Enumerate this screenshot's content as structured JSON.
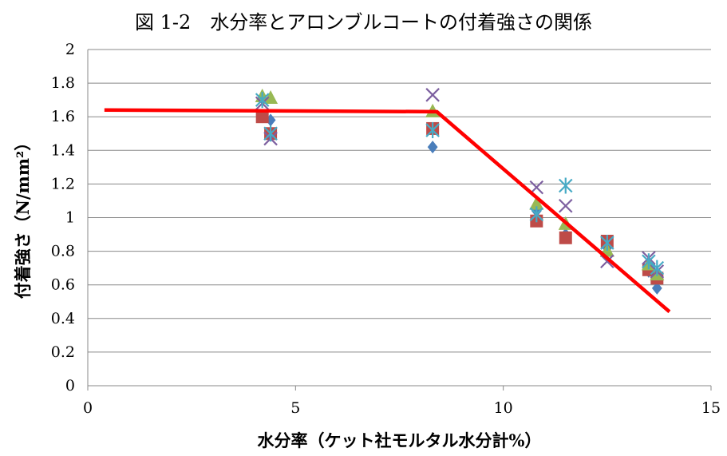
{
  "chart_data": {
    "type": "scatter",
    "title": "図 1-2　水分率とアロンブルコートの付着強さの関係",
    "xlabel": "水分率（ケット社モルタル水分計%）",
    "ylabel": "付着強さ（N/mm²）",
    "xlim": [
      0,
      15
    ],
    "ylim": [
      0,
      2
    ],
    "xticks": [
      "0",
      "5",
      "10",
      "15"
    ],
    "yticks": [
      "0",
      "0.2",
      "0.4",
      "0.6",
      "0.8",
      "1",
      "1.2",
      "1.4",
      "1.6",
      "1.8",
      "2"
    ],
    "grid": "horizontal",
    "legend": "none",
    "series": [
      {
        "marker": "diamond",
        "color": "#4A7EBB",
        "points": [
          [
            4.2,
            1.6
          ],
          [
            4.4,
            1.58
          ],
          [
            8.3,
            1.42
          ],
          [
            10.8,
            1.04
          ],
          [
            11.5,
            0.9
          ],
          [
            12.5,
            0.82
          ],
          [
            13.5,
            0.68
          ],
          [
            13.7,
            0.58
          ]
        ]
      },
      {
        "marker": "square",
        "color": "#BE4B48",
        "points": [
          [
            4.2,
            1.6
          ],
          [
            4.4,
            1.5
          ],
          [
            8.3,
            1.53
          ],
          [
            10.8,
            0.98
          ],
          [
            11.5,
            0.88
          ],
          [
            12.5,
            0.86
          ],
          [
            13.5,
            0.69
          ],
          [
            13.7,
            0.64
          ]
        ]
      },
      {
        "marker": "triangle",
        "color": "#98B954",
        "points": [
          [
            4.2,
            1.72
          ],
          [
            4.4,
            1.71
          ],
          [
            8.3,
            1.63
          ],
          [
            10.8,
            1.08
          ],
          [
            11.5,
            0.96
          ],
          [
            12.5,
            0.8
          ],
          [
            13.5,
            0.72
          ],
          [
            13.7,
            0.66
          ]
        ]
      },
      {
        "marker": "x",
        "color": "#7D60A0",
        "points": [
          [
            4.2,
            1.68
          ],
          [
            4.4,
            1.47
          ],
          [
            8.3,
            1.73
          ],
          [
            10.8,
            1.18
          ],
          [
            11.5,
            1.07
          ],
          [
            12.5,
            0.74
          ],
          [
            13.5,
            0.76
          ],
          [
            13.7,
            0.68
          ]
        ]
      },
      {
        "marker": "star",
        "color": "#46AAC5",
        "points": [
          [
            4.2,
            1.7
          ],
          [
            4.4,
            1.5
          ],
          [
            8.3,
            1.52
          ],
          [
            10.8,
            1.02
          ],
          [
            11.5,
            1.19
          ],
          [
            12.5,
            0.85
          ],
          [
            13.5,
            0.74
          ],
          [
            13.7,
            0.7
          ]
        ]
      }
    ],
    "trend_line": {
      "color": "#FF0000",
      "points": [
        [
          0.4,
          1.64
        ],
        [
          8.4,
          1.63
        ],
        [
          14,
          0.44
        ]
      ]
    }
  }
}
